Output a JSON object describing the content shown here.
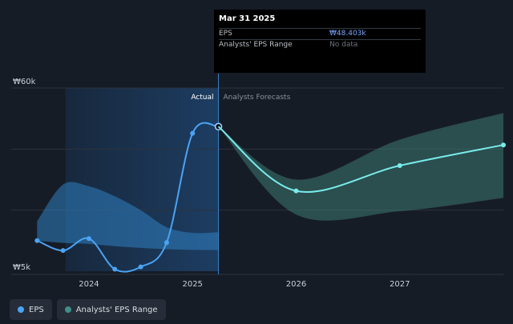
{
  "chart_data": {
    "type": "line",
    "y_axis": {
      "top_label": "₩60k",
      "bottom_label": "₩5k",
      "ylim": [
        5000,
        60000
      ]
    },
    "x_axis": {
      "ticks": [
        "2024",
        "2025",
        "2026",
        "2027"
      ]
    },
    "region_labels": {
      "actual": "Actual",
      "forecast": "Analysts Forecasts"
    },
    "series": [
      {
        "name": "EPS",
        "color": "#4ba3f5",
        "points": [
          {
            "x": 2023.5,
            "y": 14200
          },
          {
            "x": 2023.75,
            "y": 11200
          },
          {
            "x": 2024.0,
            "y": 14800
          },
          {
            "x": 2024.25,
            "y": 5600
          },
          {
            "x": 2024.5,
            "y": 6300
          },
          {
            "x": 2024.75,
            "y": 13600
          },
          {
            "x": 2025.0,
            "y": 46400
          },
          {
            "x": 2025.25,
            "y": 48403
          }
        ]
      },
      {
        "name": "EPS forecast",
        "color": "#79ecea",
        "points": [
          {
            "x": 2025.25,
            "y": 48403
          },
          {
            "x": 2026.0,
            "y": 29100
          },
          {
            "x": 2027.0,
            "y": 36700
          },
          {
            "x": 2028.0,
            "y": 42900
          }
        ]
      }
    ],
    "ranges": [
      {
        "name": "Analysts' EPS Range (past)",
        "color": "#2f7fc1",
        "x": [
          2023.5,
          2023.75,
          2024.0,
          2024.25,
          2024.5,
          2024.75,
          2025.0,
          2025.25
        ],
        "high": [
          20000,
          31000,
          30500,
          27500,
          23300,
          18200,
          16500,
          16700
        ],
        "low": [
          14200,
          13500,
          13200,
          12500,
          12000,
          11600,
          11400,
          11300
        ]
      },
      {
        "name": "Analysts' EPS Range (forecast)",
        "color": "#3f7f78",
        "x": [
          2025.25,
          2026.0,
          2027.0,
          2028.0
        ],
        "high": [
          48403,
          32500,
          44500,
          52500
        ],
        "low": [
          48403,
          22000,
          23000,
          27000
        ]
      }
    ],
    "tooltip": {
      "date": "Mar 31 2025",
      "rows": [
        {
          "label": "EPS",
          "value": "₩48.403k"
        },
        {
          "label": "Analysts' EPS Range",
          "value": "No data"
        }
      ]
    },
    "legend": [
      {
        "label": "EPS",
        "color": "#4ba3f5"
      },
      {
        "label": "Analysts' EPS Range",
        "color": "#3f8f8a"
      }
    ]
  }
}
